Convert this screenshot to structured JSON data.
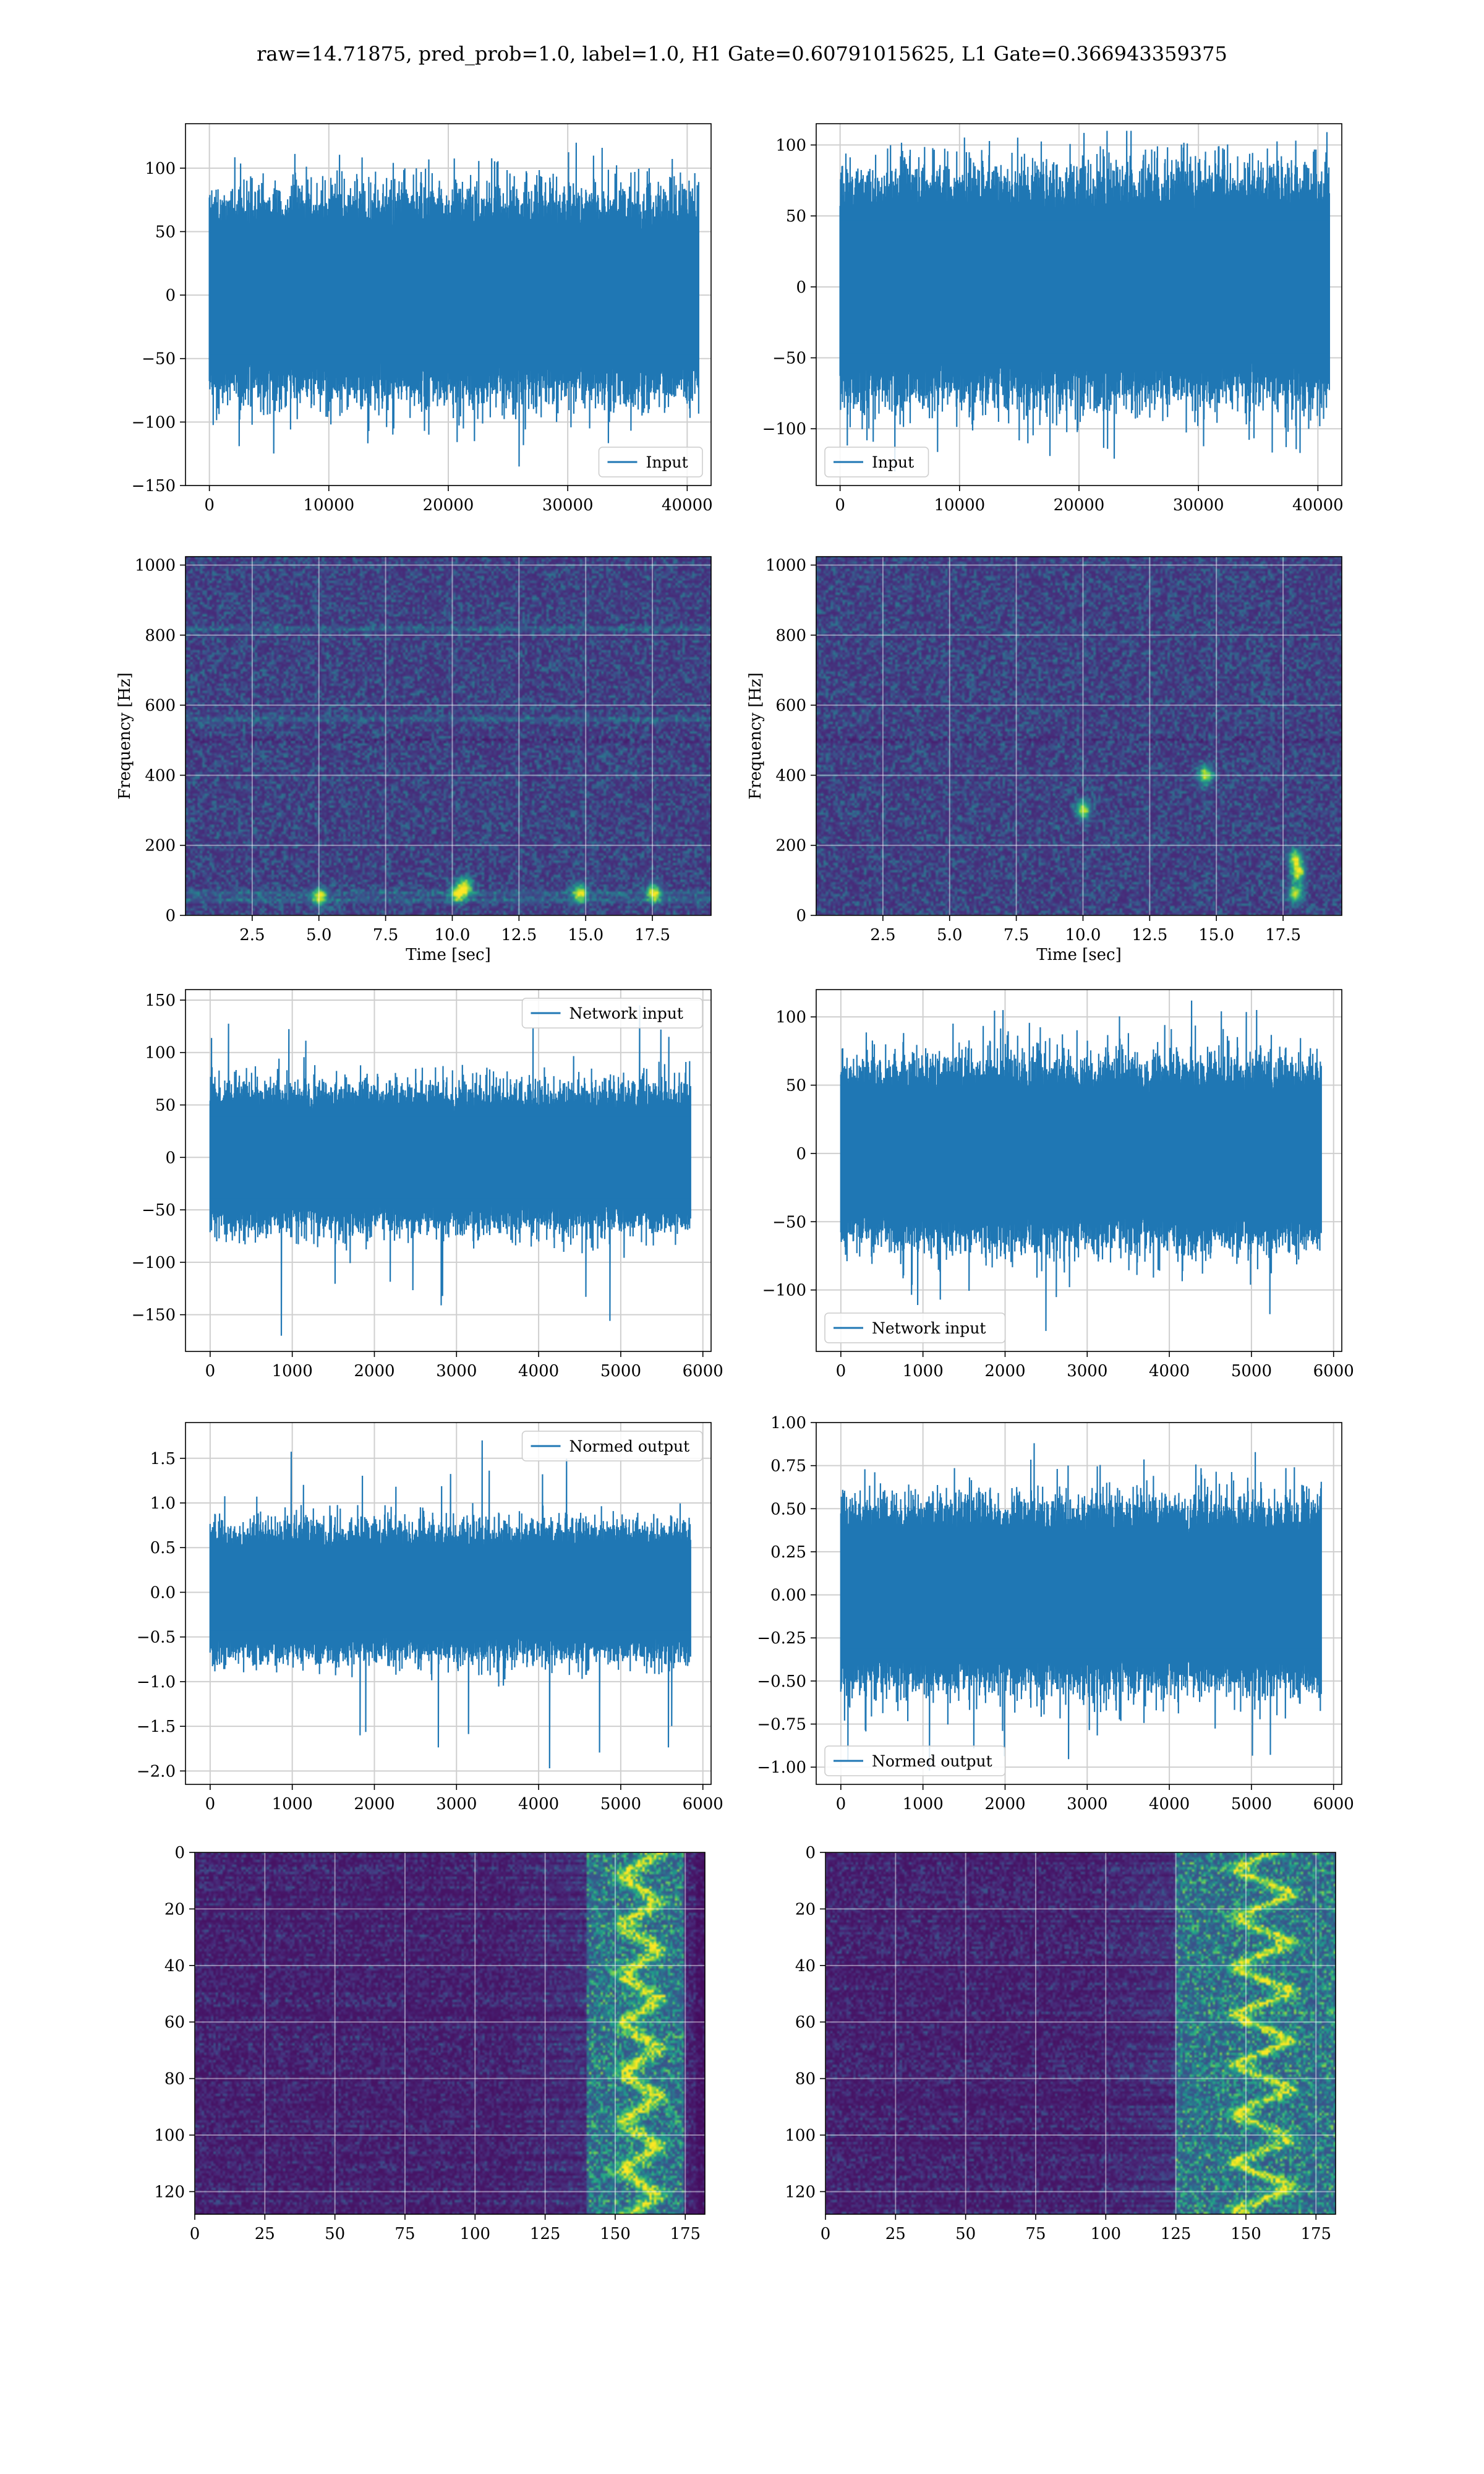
{
  "title": "raw=14.71875, pred_prob=1.0, label=1.0, H1 Gate=0.60791015625, L1 Gate=0.366943359375",
  "colors": {
    "line": "#1f77b4",
    "grid": "#cfcfcf",
    "viridis_dark": "#440154",
    "viridis_mid": "#21918c",
    "viridis_bright": "#fde725"
  },
  "chart_data": [
    {
      "id": "h1-input",
      "type": "line",
      "series": [
        {
          "name": "Input"
        }
      ],
      "xlim": [
        -2000,
        42000
      ],
      "ylim": [
        -150,
        135
      ],
      "xticks": [
        0,
        10000,
        20000,
        30000,
        40000
      ],
      "yticks": [
        -150,
        -100,
        -50,
        0,
        50,
        100
      ],
      "n_points": 40960,
      "amplitude": {
        "core": 60,
        "peaks": [
          120,
          -135
        ]
      },
      "legend": "lower right",
      "grid": true
    },
    {
      "id": "l1-input",
      "type": "line",
      "series": [
        {
          "name": "Input"
        }
      ],
      "xlim": [
        -2000,
        42000
      ],
      "ylim": [
        -140,
        115
      ],
      "xticks": [
        0,
        10000,
        20000,
        30000,
        40000
      ],
      "yticks": [
        -100,
        -50,
        0,
        50,
        100
      ],
      "n_points": 40960,
      "amplitude": {
        "core": 60,
        "peaks": [
          110,
          -130
        ]
      },
      "legend": "lower left",
      "grid": true
    },
    {
      "id": "h1-spectrogram",
      "type": "heatmap",
      "colormap": "viridis",
      "xlim": [
        0,
        19.7
      ],
      "ylim": [
        0,
        1024
      ],
      "xticks": [
        2.5,
        5.0,
        7.5,
        10.0,
        12.5,
        15.0,
        17.5
      ],
      "yticks": [
        0,
        200,
        400,
        600,
        800,
        1000
      ],
      "xlabel": "Time [sec]",
      "ylabel": "Frequency [Hz]",
      "grid": true,
      "bright_lines_hz": [
        40,
        60,
        500,
        560,
        820
      ],
      "hotspots": [
        [
          10.2,
          60
        ],
        [
          10.5,
          80
        ],
        [
          17.6,
          60
        ],
        [
          5.0,
          50
        ],
        [
          14.8,
          60
        ]
      ]
    },
    {
      "id": "l1-spectrogram",
      "type": "heatmap",
      "colormap": "viridis",
      "xlim": [
        0,
        19.7
      ],
      "ylim": [
        0,
        1024
      ],
      "xticks": [
        2.5,
        5.0,
        7.5,
        10.0,
        12.5,
        15.0,
        17.5
      ],
      "yticks": [
        0,
        200,
        400,
        600,
        800,
        1000
      ],
      "xlabel": "Time [sec]",
      "ylabel": "Frequency [Hz]",
      "grid": true,
      "bright_lines_hz": [
        500
      ],
      "hotspots": [
        [
          18.0,
          60
        ],
        [
          18.1,
          120
        ],
        [
          18.0,
          160
        ],
        [
          10.0,
          300
        ],
        [
          14.6,
          400
        ]
      ]
    },
    {
      "id": "h1-network-input",
      "type": "line",
      "series": [
        {
          "name": "Network input"
        }
      ],
      "xlim": [
        -300,
        6100
      ],
      "ylim": [
        -185,
        160
      ],
      "xticks": [
        0,
        1000,
        2000,
        3000,
        4000,
        5000,
        6000
      ],
      "yticks": [
        -150,
        -100,
        -50,
        0,
        50,
        100,
        150
      ],
      "n_points": 5850,
      "amplitude": {
        "core": 50,
        "peaks": [
          145,
          -170
        ]
      },
      "legend": "upper right",
      "grid": true
    },
    {
      "id": "l1-network-input",
      "type": "line",
      "series": [
        {
          "name": "Network input"
        }
      ],
      "xlim": [
        -300,
        6100
      ],
      "ylim": [
        -145,
        120
      ],
      "xticks": [
        0,
        1000,
        2000,
        3000,
        4000,
        5000,
        6000
      ],
      "yticks": [
        -100,
        -50,
        0,
        50,
        100
      ],
      "n_points": 5850,
      "amplitude": {
        "core": 50,
        "peaks": [
          112,
          -130
        ]
      },
      "legend": "lower left",
      "grid": true
    },
    {
      "id": "h1-normed-output",
      "type": "line",
      "series": [
        {
          "name": "Normed output"
        }
      ],
      "xlim": [
        -300,
        6100
      ],
      "ylim": [
        -2.15,
        1.9
      ],
      "xticks": [
        0,
        1000,
        2000,
        3000,
        4000,
        5000,
        6000
      ],
      "yticks": [
        -2.0,
        -1.5,
        -1.0,
        -0.5,
        0.0,
        0.5,
        1.0,
        1.5
      ],
      "tick_decimals": 1,
      "n_points": 5850,
      "amplitude": {
        "core": 0.55,
        "peaks": [
          1.7,
          -1.97
        ]
      },
      "legend": "upper right",
      "grid": true
    },
    {
      "id": "l1-normed-output",
      "type": "line",
      "series": [
        {
          "name": "Normed output"
        }
      ],
      "xlim": [
        -300,
        6100
      ],
      "ylim": [
        -1.1,
        1.0
      ],
      "xticks": [
        0,
        1000,
        2000,
        3000,
        4000,
        5000,
        6000
      ],
      "yticks": [
        -1.0,
        -0.75,
        -0.5,
        -0.25,
        0.0,
        0.25,
        0.5,
        0.75,
        1.0
      ],
      "tick_decimals": 2,
      "n_points": 5850,
      "amplitude": {
        "core": 0.4,
        "peaks": [
          0.88,
          -1.02
        ]
      },
      "legend": "lower left",
      "grid": true
    },
    {
      "id": "h1-feature-map",
      "type": "heatmap",
      "colormap": "viridis",
      "xlim": [
        0,
        182
      ],
      "ylim": [
        128,
        0
      ],
      "xticks": [
        0,
        25,
        50,
        75,
        100,
        125,
        150,
        175
      ],
      "yticks": [
        0,
        20,
        40,
        60,
        80,
        100,
        120
      ],
      "grid": true,
      "bright_band": [
        140,
        175
      ]
    },
    {
      "id": "l1-feature-map",
      "type": "heatmap",
      "colormap": "viridis",
      "xlim": [
        0,
        182
      ],
      "ylim": [
        128,
        0
      ],
      "xticks": [
        0,
        25,
        50,
        75,
        100,
        125,
        150,
        175
      ],
      "yticks": [
        0,
        20,
        40,
        60,
        80,
        100,
        120
      ],
      "grid": true,
      "bright_band": [
        125,
        182
      ]
    }
  ]
}
